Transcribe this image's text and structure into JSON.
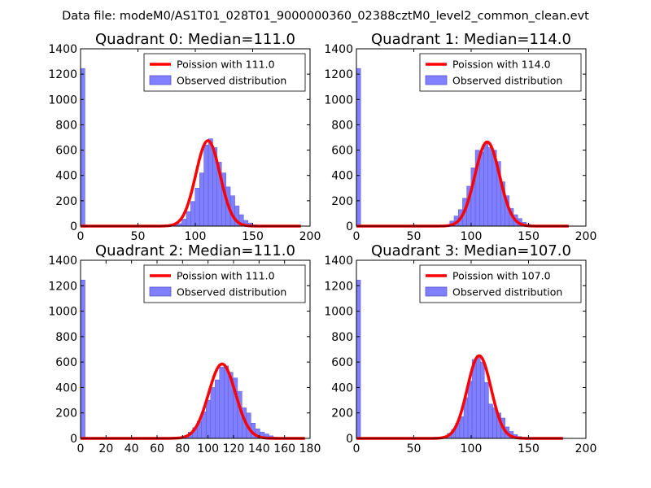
{
  "suptitle": "Data file: modeM0/AS1T01_028T01_9000000360_02388cztM0_level2_common_clean.evt",
  "colors": {
    "bar_fill": "#7f7fff",
    "bar_edge": "#5a5ad0",
    "curve": "#ff0000"
  },
  "chart_data": [
    {
      "type": "bar",
      "title": "Quadrant 0: Median=111.0",
      "xlim": [
        0,
        200
      ],
      "ylim": [
        0,
        1400
      ],
      "xticks": [
        "0",
        "50",
        "100",
        "150",
        "200"
      ],
      "yticks": [
        "0",
        "200",
        "400",
        "600",
        "800",
        "1000",
        "1200",
        "1400"
      ],
      "legend_position": "upper-right",
      "legend": [
        "Poission with 111.0",
        "Observed distribution"
      ],
      "bin_width": 3.84,
      "bins": [
        [
          0,
          1245
        ],
        [
          76.8,
          5
        ],
        [
          80.6,
          10
        ],
        [
          84.5,
          20
        ],
        [
          88.3,
          55
        ],
        [
          92.2,
          115
        ],
        [
          96,
          195
        ],
        [
          99.8,
          300
        ],
        [
          103.7,
          420
        ],
        [
          107.5,
          640
        ],
        [
          111.4,
          690
        ],
        [
          115.2,
          620
        ],
        [
          119,
          505
        ],
        [
          122.9,
          420
        ],
        [
          126.7,
          310
        ],
        [
          130.6,
          240
        ],
        [
          134.4,
          160
        ],
        [
          138.2,
          90
        ],
        [
          142.1,
          45
        ],
        [
          145.9,
          25
        ],
        [
          149.8,
          10
        ]
      ],
      "curve_mean": 111.0,
      "curve_peak": 675,
      "curve_range": [
        0,
        192
      ]
    },
    {
      "type": "bar",
      "title": "Quadrant 1: Median=114.0",
      "xlim": [
        0,
        200
      ],
      "ylim": [
        0,
        1400
      ],
      "xticks": [
        "0",
        "50",
        "100",
        "150",
        "200"
      ],
      "yticks": [
        "0",
        "200",
        "400",
        "600",
        "800",
        "1000",
        "1200",
        "1400"
      ],
      "legend_position": "upper-right",
      "legend": [
        "Poission with 114.0",
        "Observed distribution"
      ],
      "bin_width": 3.7,
      "bins": [
        [
          0,
          1245
        ],
        [
          81.4,
          40
        ],
        [
          85.1,
          80
        ],
        [
          88.8,
          130
        ],
        [
          92.5,
          220
        ],
        [
          96.2,
          315
        ],
        [
          99.9,
          460
        ],
        [
          103.6,
          600
        ],
        [
          107.3,
          585
        ],
        [
          111,
          650
        ],
        [
          114.7,
          620
        ],
        [
          118.4,
          600
        ],
        [
          122.1,
          510
        ],
        [
          125.8,
          350
        ],
        [
          129.5,
          240
        ],
        [
          133.2,
          140
        ],
        [
          136.9,
          90
        ],
        [
          140.6,
          60
        ],
        [
          144.3,
          30
        ],
        [
          148,
          15
        ]
      ],
      "curve_mean": 114.0,
      "curve_peak": 665,
      "curve_range": [
        0,
        185
      ]
    },
    {
      "type": "bar",
      "title": "Quadrant 2: Median=111.0",
      "xlim": [
        0,
        180
      ],
      "ylim": [
        0,
        1400
      ],
      "xticks": [
        "0",
        "20",
        "40",
        "60",
        "80",
        "100",
        "120",
        "140",
        "160",
        "180"
      ],
      "yticks": [
        "0",
        "200",
        "400",
        "600",
        "800",
        "1000",
        "1200",
        "1400"
      ],
      "legend_position": "upper-right",
      "legend": [
        "Poission with 111.0",
        "Observed distribution"
      ],
      "bin_width": 3.52,
      "bins": [
        [
          0,
          1245
        ],
        [
          80.9,
          15
        ],
        [
          84.4,
          50
        ],
        [
          87.9,
          85
        ],
        [
          91.4,
          135
        ],
        [
          94.9,
          210
        ],
        [
          98.5,
          300
        ],
        [
          102,
          400
        ],
        [
          105.5,
          460
        ],
        [
          109,
          560
        ],
        [
          112.5,
          570
        ],
        [
          116,
          520
        ],
        [
          119.6,
          475
        ],
        [
          123.1,
          370
        ],
        [
          126.6,
          240
        ],
        [
          130.1,
          200
        ],
        [
          133.6,
          120
        ],
        [
          137.1,
          75
        ],
        [
          140.7,
          50
        ],
        [
          144.2,
          35
        ],
        [
          147.7,
          20
        ],
        [
          151.2,
          10
        ]
      ],
      "curve_mean": 111.0,
      "curve_peak": 585,
      "curve_range": [
        0,
        176
      ]
    },
    {
      "type": "bar",
      "title": "Quadrant 3: Median=107.0",
      "xlim": [
        0,
        200
      ],
      "ylim": [
        0,
        1400
      ],
      "xticks": [
        "0",
        "50",
        "100",
        "150",
        "200"
      ],
      "yticks": [
        "0",
        "200",
        "400",
        "600",
        "800",
        "1000",
        "1200",
        "1400"
      ],
      "legend_position": "upper-right",
      "legend": [
        "Poission with 107.0",
        "Observed distribution"
      ],
      "bin_width": 3.6,
      "bins": [
        [
          0,
          1245
        ],
        [
          75.6,
          15
        ],
        [
          79.2,
          40
        ],
        [
          82.8,
          70
        ],
        [
          86.4,
          120
        ],
        [
          90,
          170
        ],
        [
          93.6,
          320
        ],
        [
          97.2,
          450
        ],
        [
          100.8,
          620
        ],
        [
          104.4,
          650
        ],
        [
          108,
          600
        ],
        [
          111.6,
          440
        ],
        [
          115.2,
          270
        ],
        [
          118.8,
          240
        ],
        [
          122.4,
          200
        ],
        [
          126,
          160
        ],
        [
          129.6,
          90
        ],
        [
          133.2,
          55
        ],
        [
          136.8,
          30
        ],
        [
          140.4,
          15
        ]
      ],
      "curve_mean": 107.0,
      "curve_peak": 650,
      "curve_range": [
        0,
        180
      ]
    }
  ]
}
